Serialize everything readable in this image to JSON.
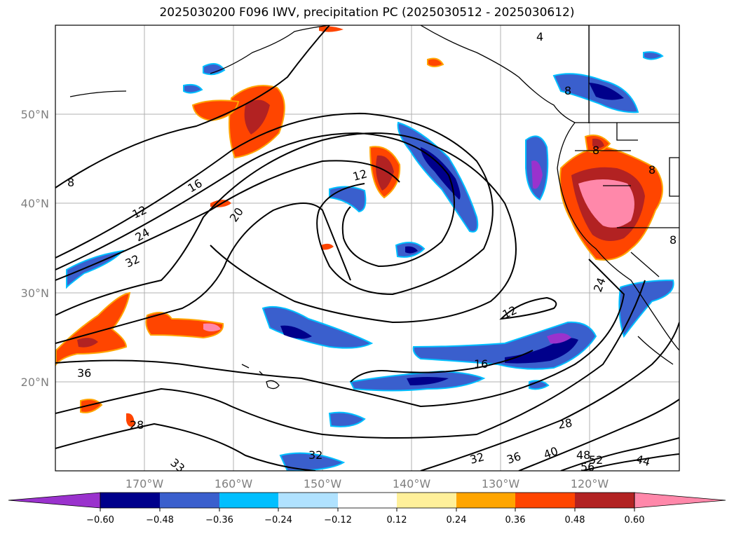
{
  "title": "2025030200 F096 IWV, precipitation PC (2025030512 - 2025030612)",
  "lat_ticks": [
    "50°N",
    "40°N",
    "30°N",
    "20°N"
  ],
  "lon_ticks": [
    "170°W",
    "160°W",
    "150°W",
    "140°W",
    "130°W",
    "120°W"
  ],
  "colorbar": {
    "colors": [
      "#9a32cd",
      "#00008b",
      "#3a5fcd",
      "#00bfff",
      "#b0e2ff",
      "#ffffff",
      "#fff09a",
      "#ffa500",
      "#ff4500",
      "#b22222",
      "#ff88aa"
    ],
    "labels": [
      "−0.60",
      "−0.48",
      "−0.36",
      "−0.24",
      "−0.12",
      "0.12",
      "0.24",
      "0.36",
      "0.48",
      "0.60"
    ]
  },
  "contour_labels": [
    "8",
    "16",
    "12",
    "24",
    "32",
    "20",
    "12",
    "36",
    "28",
    "32",
    "32",
    "36",
    "40",
    "48",
    "52",
    "56",
    "44",
    "28",
    "24",
    "16",
    "12",
    "8",
    "8",
    "4",
    "8",
    "8",
    "33"
  ]
}
